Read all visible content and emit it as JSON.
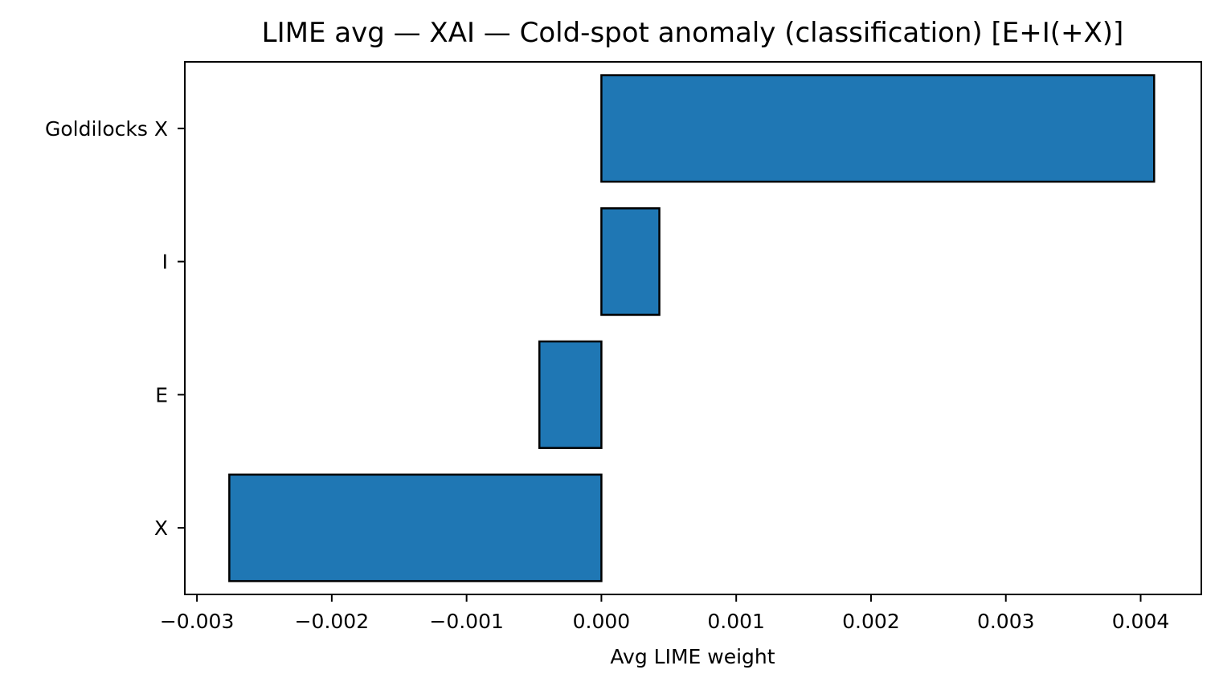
{
  "chart_data": {
    "type": "bar",
    "orientation": "horizontal",
    "title": "LIME avg — XAI — Cold-spot anomaly (classification) [E+I(+X)]",
    "xlabel": "Avg LIME weight",
    "ylabel": "",
    "categories": [
      "Goldilocks X",
      "I",
      "E",
      "X"
    ],
    "values": [
      0.0041,
      0.00043,
      -0.00046,
      -0.00276
    ],
    "xlim": [
      -0.00309,
      0.00445
    ],
    "xticks": [
      -0.003,
      -0.002,
      -0.001,
      0.0,
      0.001,
      0.002,
      0.003,
      0.004
    ],
    "xtick_labels": [
      "−0.003",
      "−0.002",
      "−0.001",
      "0.000",
      "0.001",
      "0.002",
      "0.003",
      "0.004"
    ],
    "bar_color": "#1f77b4",
    "edge_color": "#000000",
    "grid": false,
    "legend": "none"
  }
}
